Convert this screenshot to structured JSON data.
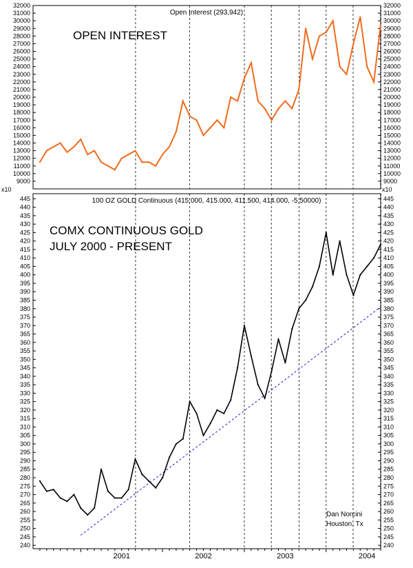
{
  "chart_data": [
    {
      "type": "line",
      "title": "Open Interest (293,942)",
      "annotation": "OPEN INTEREST",
      "ylim": [
        8000,
        32000
      ],
      "yticks": [
        9000,
        10000,
        11000,
        12000,
        13000,
        14000,
        15000,
        16000,
        17000,
        18000,
        19000,
        20000,
        21000,
        22000,
        23000,
        24000,
        25000,
        26000,
        27000,
        28000,
        29000,
        30000,
        31000,
        32000
      ],
      "scale_label": "x10",
      "line_color": "#f26a1b",
      "series": [
        {
          "x": [
            "2000-07",
            "2000-08",
            "2000-09",
            "2000-10",
            "2000-11",
            "2000-12",
            "2001-01",
            "2001-02",
            "2001-03",
            "2001-04",
            "2001-05",
            "2001-06",
            "2001-07",
            "2001-08",
            "2001-09",
            "2001-10",
            "2001-11",
            "2001-12",
            "2002-01",
            "2002-02",
            "2002-03",
            "2002-04",
            "2002-05",
            "2002-06",
            "2002-07",
            "2002-08",
            "2002-09",
            "2002-10",
            "2002-11",
            "2002-12",
            "2003-01",
            "2003-02",
            "2003-03",
            "2003-04",
            "2003-05",
            "2003-06",
            "2003-07",
            "2003-08",
            "2003-09",
            "2003-10",
            "2003-11",
            "2003-12",
            "2004-01",
            "2004-02",
            "2004-03",
            "2004-04",
            "2004-05",
            "2004-06",
            "2004-07",
            "2004-08",
            "2004-09"
          ],
          "values": [
            11500,
            13000,
            13500,
            14000,
            12800,
            13500,
            14500,
            12500,
            13000,
            11500,
            11000,
            10500,
            12000,
            12500,
            13000,
            11500,
            11500,
            11000,
            12500,
            13500,
            15500,
            19500,
            17500,
            17000,
            15000,
            16000,
            17000,
            16000,
            20000,
            19500,
            22500,
            24500,
            19500,
            18500,
            17000,
            18500,
            19500,
            18500,
            21000,
            29000,
            25000,
            28000,
            28500,
            30000,
            24000,
            23000,
            27000,
            30500,
            24000,
            22000,
            29500
          ]
        }
      ]
    },
    {
      "type": "line",
      "title": "100 OZ GOLD Continuous (415.000, 415.000, 411.500, 414.000, -5.50000)",
      "annotation": [
        "COMX CONTINUOUS GOLD",
        "JULY 2000 - PRESENT"
      ],
      "credit": [
        "Dan Norcini",
        "Houston, Tx"
      ],
      "ylim": [
        238,
        448
      ],
      "yticks": [
        240,
        245,
        250,
        255,
        260,
        265,
        270,
        275,
        280,
        285,
        290,
        295,
        300,
        305,
        310,
        315,
        320,
        325,
        330,
        335,
        340,
        345,
        350,
        355,
        360,
        365,
        370,
        375,
        380,
        385,
        390,
        395,
        400,
        405,
        410,
        415,
        420,
        425,
        430,
        435,
        440,
        445
      ],
      "x_labels": [
        "2001",
        "2002",
        "2003",
        "2004"
      ],
      "line_color": "#000000",
      "trendline": {
        "start": [
          "2001-01",
          246
        ],
        "end": [
          "2004-09",
          381
        ],
        "color": "#1a1adc",
        "style": "dashed"
      },
      "series": [
        {
          "x": [
            "2000-07",
            "2000-08",
            "2000-09",
            "2000-10",
            "2000-11",
            "2000-12",
            "2001-01",
            "2001-02",
            "2001-03",
            "2001-04",
            "2001-05",
            "2001-06",
            "2001-07",
            "2001-08",
            "2001-09",
            "2001-10",
            "2001-11",
            "2001-12",
            "2002-01",
            "2002-02",
            "2002-03",
            "2002-04",
            "2002-05",
            "2002-06",
            "2002-07",
            "2002-08",
            "2002-09",
            "2002-10",
            "2002-11",
            "2002-12",
            "2003-01",
            "2003-02",
            "2003-03",
            "2003-04",
            "2003-05",
            "2003-06",
            "2003-07",
            "2003-08",
            "2003-09",
            "2003-10",
            "2003-11",
            "2003-12",
            "2004-01",
            "2004-02",
            "2004-03",
            "2004-04",
            "2004-05",
            "2004-06",
            "2004-07",
            "2004-08",
            "2004-09"
          ],
          "values": [
            278,
            272,
            273,
            268,
            266,
            270,
            262,
            258,
            262,
            285,
            272,
            268,
            268,
            273,
            291,
            282,
            278,
            274,
            280,
            292,
            300,
            303,
            325,
            318,
            305,
            312,
            320,
            318,
            326,
            345,
            370,
            352,
            335,
            327,
            343,
            362,
            348,
            368,
            380,
            385,
            393,
            405,
            425,
            400,
            420,
            400,
            388,
            400,
            405,
            410,
            418
          ]
        }
      ]
    }
  ]
}
